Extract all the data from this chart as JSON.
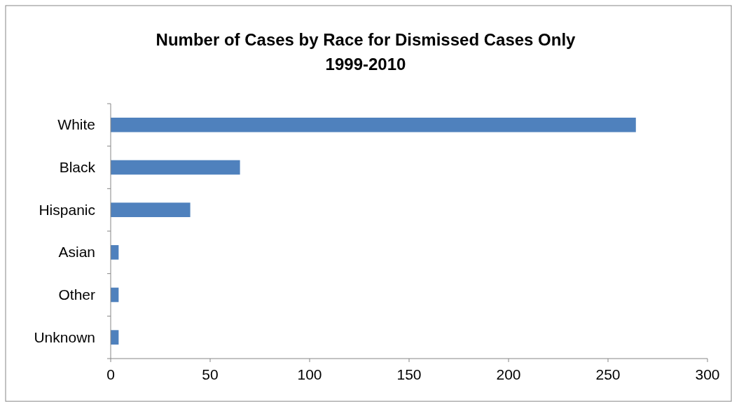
{
  "chart_data": {
    "type": "bar",
    "orientation": "horizontal",
    "title": "Number of Cases by Race for Dismissed Cases Only\n1999-2010",
    "categories": [
      "White",
      "Black",
      "Hispanic",
      "Asian",
      "Other",
      "Unknown"
    ],
    "values": [
      264,
      65,
      40,
      4,
      4,
      4
    ],
    "color": "#4f81bd",
    "xlim": [
      0,
      300
    ],
    "xticks": [
      0,
      50,
      100,
      150,
      200,
      250,
      300
    ],
    "grid": false
  }
}
